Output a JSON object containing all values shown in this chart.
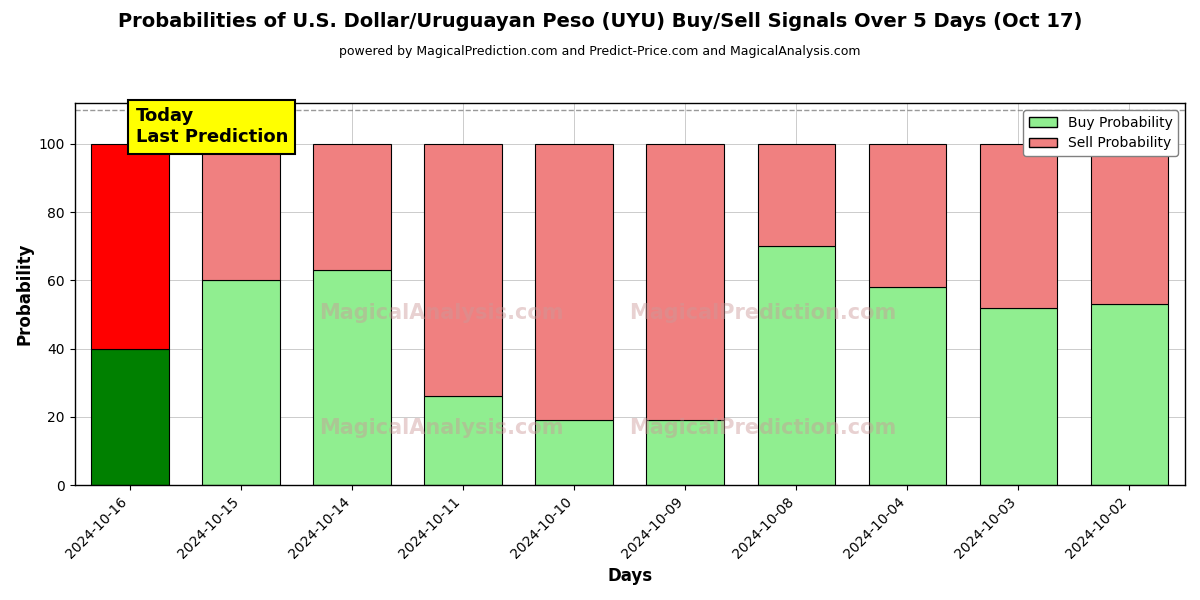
{
  "title": "Probabilities of U.S. Dollar/Uruguayan Peso (UYU) Buy/Sell Signals Over 5 Days (Oct 17)",
  "subtitle": "powered by MagicalPrediction.com and Predict-Price.com and MagicalAnalysis.com",
  "xlabel": "Days",
  "ylabel": "Probability",
  "categories": [
    "2024-10-16",
    "2024-10-15",
    "2024-10-14",
    "2024-10-11",
    "2024-10-10",
    "2024-10-09",
    "2024-10-08",
    "2024-10-04",
    "2024-10-03",
    "2024-10-02"
  ],
  "buy_values": [
    40,
    60,
    63,
    26,
    19,
    19,
    70,
    58,
    52,
    53
  ],
  "sell_values": [
    60,
    40,
    37,
    74,
    81,
    81,
    30,
    42,
    48,
    47
  ],
  "today_bar_buy_color": "#008000",
  "today_bar_sell_color": "#ff0000",
  "buy_color": "#90EE90",
  "sell_color": "#F08080",
  "today_annotation_bg": "#ffff00",
  "today_annotation_text": "Today\nLast Prediction",
  "ylim": [
    0,
    112
  ],
  "yticks": [
    0,
    20,
    40,
    60,
    80,
    100
  ],
  "dashed_line_y": 110,
  "legend_buy_label": "Buy Probability",
  "legend_sell_label": "Sell Probability",
  "fig_width": 12,
  "fig_height": 6,
  "bg_color": "#ffffff",
  "grid_color": "#cccccc"
}
